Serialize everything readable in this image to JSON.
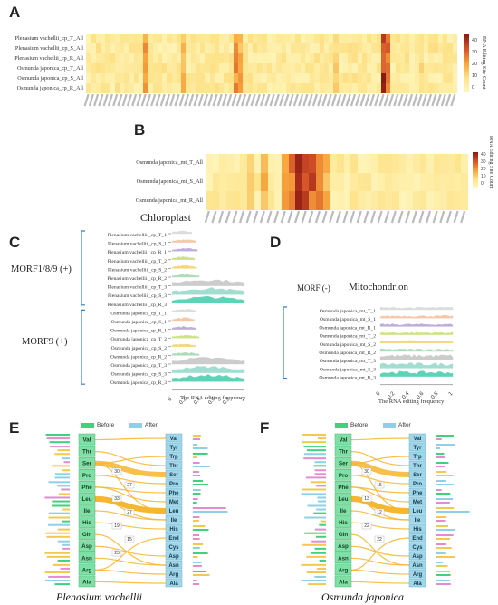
{
  "panels": {
    "A": {
      "letter": "A",
      "rows": [
        "Plenasium vachellii_cp_T_All",
        "Plenasium vachellii_cp_S_All",
        "Plenasium vachellii_cp_R_All",
        "Osmunda japonica_cp_T_All",
        "Osmunda japonica_cp_S_All",
        "Osmunda japonica_cp_R_All"
      ],
      "colorbar_ticks": [
        "40",
        "30",
        "20",
        "10",
        "0"
      ],
      "colorbar_label": "RNA Editing Site Count"
    },
    "B": {
      "letter": "B",
      "rows": [
        "Osmunda japonica_mt_T_All",
        "Osmunda japonica_mt_S_All",
        "Osmunda japonica_mt_R_All"
      ],
      "colorbar_ticks": [
        "40",
        "30",
        "20",
        "10",
        "0"
      ],
      "colorbar_label": "RNA Editing Site Count"
    },
    "C": {
      "letter": "C",
      "title": "Chloroplast",
      "group_top": "MORF1/8/9 (+)",
      "group_bottom": "MORF9 (+)",
      "rows": [
        "Plenasium vachellii _cp_T_1",
        "Plenasium vachellii _cp_S_1",
        "Plenasium vachellii _cp_R_1",
        "Plenasium vachellii _cp_T_2",
        "Plenasium vachellii _cp_S_2",
        "Plenasium vachellii _cp_R_2",
        "Plenasium vachellii _cp_T_3",
        "Plenasium vachellii _cp_S_3",
        "Plenasium vachellii _cp_R_3",
        "Osmunda japonica_cp_T_1",
        "Osmunda japonica_cp_S_1",
        "Osmunda japonica_cp_R_1",
        "Osmunda japonica_cp_T_2",
        "Osmunda japonica_cp_S_2",
        "Osmunda japonica_cp_R_2",
        "Osmunda japonica_cp_T_3",
        "Osmunda japonica_cp_S_3",
        "Osmunda japonica_cp_R_3"
      ],
      "x_ticks": [
        "0",
        "0.2",
        "0.4",
        "0.6",
        "0.8",
        "1"
      ],
      "xlabel": "The RNA editing frequency"
    },
    "D": {
      "letter": "D",
      "title": "Mitochondrion",
      "group": "MORF (-)",
      "rows": [
        "Osmunda japonica_mt_T_1",
        "Osmunda japonica_mt_S_1",
        "Osmunda japonica_mt_R_1",
        "Osmunda japonica_mt_T_2",
        "Osmunda japonica_mt_S_2",
        "Osmunda japonica_mt_R_2",
        "Osmunda japonica_mt_T_3",
        "Osmunda japonica_mt_S_3",
        "Osmunda japonica_mt_R_3"
      ],
      "x_ticks": [
        "0",
        "0.2",
        "0.4",
        "0.6",
        "0.8",
        "1"
      ],
      "xlabel": "The RNA editing frequency"
    },
    "E": {
      "letter": "E",
      "legend_before": "Before",
      "legend_after": "After",
      "species": "Plenasium vachellii",
      "left_aa": [
        "Val",
        "Thr",
        "Ser",
        "Pro",
        "Phe",
        "Leu",
        "Ile",
        "His",
        "Gln",
        "Asp",
        "Asn",
        "Arg",
        "Ala"
      ],
      "right_aa": [
        "Val",
        "Tyr",
        "Trp",
        "Thr",
        "Ser",
        "Pro",
        "Phe",
        "Met",
        "Leu",
        "Ile",
        "His",
        "End",
        "Cys",
        "Asp",
        "Asn",
        "Arg",
        "Ala"
      ],
      "flow_labels": [
        "30",
        "27",
        "33",
        "27",
        "19",
        "15",
        "23"
      ]
    },
    "F": {
      "letter": "F",
      "legend_before": "Before",
      "legend_after": "After",
      "species": "Osmunda japonica",
      "left_aa": [
        "Val",
        "Thr",
        "Ser",
        "Pro",
        "Phe",
        "Leu",
        "Ile",
        "His",
        "Gln",
        "Asp",
        "Asn",
        "Arg",
        "Ala"
      ],
      "right_aa": [
        "Val",
        "Tyr",
        "Trp",
        "Thr",
        "Ser",
        "Pro",
        "Phe",
        "Met",
        "Leu",
        "Ile",
        "His",
        "End",
        "Cys",
        "Asp",
        "Asn",
        "Arg",
        "Ala"
      ],
      "flow_labels": [
        "30",
        "15",
        "13",
        "12",
        "22",
        "22"
      ]
    }
  },
  "colors": {
    "heat_low": "#fff7c0",
    "heat_mid": "#f7a33b",
    "heat_high": "#8b1a10",
    "before": "#3fd17b",
    "after": "#8fd0e6",
    "flow": "#f6b52a",
    "bracket": "#3a7dc4"
  }
}
